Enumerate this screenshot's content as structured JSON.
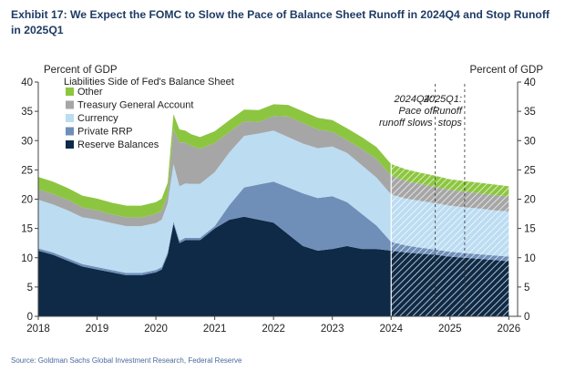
{
  "header": {
    "title": "Exhibit 17: We Expect the FOMC to Slow the Pace of Balance Sheet Runoff in 2024Q4 and Stop Runoff in 2025Q1"
  },
  "footer": {
    "source": "Source: Goldman Sachs Global Investment Research, Federal Reserve"
  },
  "colors": {
    "reserve_balances": "#0e2a47",
    "private_rrp": "#6f8fb9",
    "currency": "#bcdcf2",
    "tga": "#a6a6a6",
    "other": "#8cc640",
    "forecast_stripe": "#ffffff",
    "axis": "#444444"
  },
  "chart_data": {
    "type": "area",
    "stacked": true,
    "y_label_left": "Percent of GDP",
    "y_label_right": "Percent of GDP",
    "legend_title": "Liabilities Side of Fed's Balance Sheet",
    "legend_position": "top-left",
    "ylim": [
      0,
      40
    ],
    "y_ticks": [
      0,
      5,
      10,
      15,
      20,
      25,
      30,
      35,
      40
    ],
    "xlim": [
      2018,
      2026.15
    ],
    "x_ticks": [
      2018,
      2019,
      2020,
      2021,
      2022,
      2023,
      2024,
      2025,
      2026
    ],
    "x_tick_labels": [
      "2018",
      "2019",
      "2020",
      "2021",
      "2022",
      "2023",
      "2024",
      "2025",
      "2026"
    ],
    "forecast_start": 2024.0,
    "x": [
      2018.0,
      2018.25,
      2018.5,
      2018.75,
      2019.0,
      2019.25,
      2019.5,
      2019.75,
      2020.0,
      2020.1,
      2020.2,
      2020.3,
      2020.4,
      2020.5,
      2020.6,
      2020.75,
      2021.0,
      2021.25,
      2021.5,
      2021.75,
      2022.0,
      2022.25,
      2022.5,
      2022.75,
      2023.0,
      2023.25,
      2023.5,
      2023.75,
      2024.0,
      2024.25,
      2024.5,
      2024.75,
      2025.0,
      2025.25,
      2025.5,
      2025.75,
      2026.0
    ],
    "series": [
      {
        "name": "Reserve Balances",
        "color_key": "reserve_balances",
        "values": [
          11.2,
          10.5,
          9.5,
          8.5,
          8.0,
          7.5,
          7.0,
          7.0,
          7.5,
          8.0,
          10.5,
          15.8,
          12.5,
          13.0,
          13.0,
          13.0,
          15.0,
          16.5,
          17.0,
          16.5,
          16.0,
          14.0,
          12.0,
          11.2,
          11.5,
          12.0,
          11.5,
          11.5,
          11.2,
          10.9,
          10.7,
          10.5,
          10.2,
          10.0,
          9.8,
          9.6,
          9.4
        ]
      },
      {
        "name": "Private RRP",
        "color_key": "private_rrp",
        "values": [
          0.4,
          0.4,
          0.4,
          0.4,
          0.4,
          0.4,
          0.4,
          0.4,
          0.4,
          0.4,
          0.4,
          0.4,
          0.4,
          0.4,
          0.4,
          0.4,
          0.4,
          2.5,
          5.0,
          6.0,
          7.0,
          8.0,
          9.0,
          9.0,
          9.0,
          7.5,
          6.0,
          4.0,
          1.5,
          1.2,
          1.0,
          0.9,
          0.8,
          0.8,
          0.8,
          0.8,
          0.8
        ]
      },
      {
        "name": "Currency",
        "color_key": "currency",
        "values": [
          8.3,
          8.2,
          8.2,
          8.0,
          8.1,
          8.0,
          8.0,
          8.0,
          8.0,
          8.1,
          8.4,
          9.8,
          9.3,
          9.3,
          9.2,
          9.2,
          9.2,
          9.0,
          8.8,
          8.7,
          8.7,
          8.6,
          8.5,
          8.5,
          8.5,
          8.4,
          8.3,
          8.2,
          8.1,
          8.0,
          8.0,
          7.9,
          7.9,
          7.8,
          7.8,
          7.7,
          7.7
        ]
      },
      {
        "name": "Treasury General Account",
        "color_key": "tga",
        "values": [
          1.8,
          1.8,
          1.8,
          1.7,
          1.6,
          1.5,
          1.5,
          1.5,
          1.6,
          1.6,
          1.5,
          6.0,
          7.5,
          7.0,
          6.5,
          6.0,
          5.0,
          3.5,
          2.5,
          2.0,
          2.5,
          3.5,
          3.5,
          3.2,
          2.5,
          2.2,
          2.8,
          3.2,
          3.2,
          3.0,
          2.9,
          2.8,
          2.7,
          2.7,
          2.6,
          2.6,
          2.6
        ]
      },
      {
        "name": "Other",
        "color_key": "other",
        "values": [
          2.1,
          2.1,
          2.0,
          2.0,
          2.0,
          2.0,
          2.0,
          2.0,
          2.0,
          2.0,
          2.0,
          2.5,
          2.2,
          2.0,
          2.0,
          2.0,
          2.0,
          2.0,
          2.0,
          2.0,
          2.0,
          2.0,
          2.0,
          2.0,
          2.0,
          2.0,
          2.0,
          2.0,
          2.0,
          2.0,
          1.9,
          1.9,
          1.8,
          1.8,
          1.8,
          1.8,
          1.7
        ]
      }
    ],
    "annotations": [
      {
        "x": 2024.75,
        "lines": [
          "2024Q4:",
          "Pace of",
          "runoff slows"
        ]
      },
      {
        "x": 2025.25,
        "lines": [
          "2025Q1:",
          "Runoff",
          "stops"
        ]
      }
    ]
  }
}
